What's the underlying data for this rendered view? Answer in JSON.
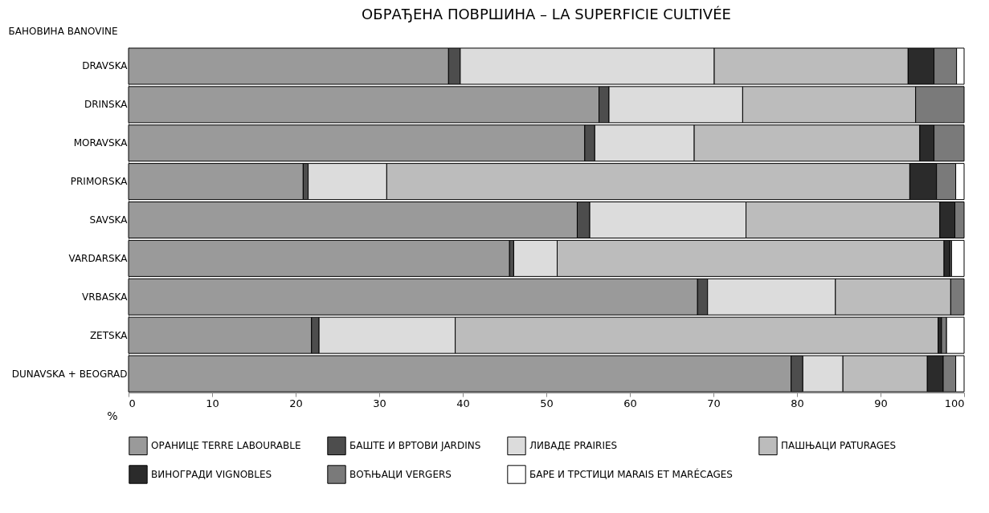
{
  "chart_data": {
    "type": "bar",
    "orientation": "horizontal",
    "stacked": true,
    "title": "ОБРАЂЕНА ПОВРШИНА – LA SUPERFICIE CULTIVÉE",
    "ylabel": "БАНОВИНА BANOVINE",
    "xlabel": "%",
    "categories": [
      "DRAVSKA",
      "DRINSKA",
      "MORAVSKA",
      "PRIMORSKA",
      "SAVSKA",
      "VARDARSKA",
      "VRBASKA",
      "ZETSKA",
      "DUNAVSKA + BEOGRAD"
    ],
    "series": [
      {
        "name": "ОРАНИЦЕ TERRE LABOURABLE",
        "color": "#9a9a9a",
        "values": [
          38.3,
          56.3,
          54.6,
          20.9,
          53.7,
          45.6,
          68.1,
          21.9,
          79.3
        ]
      },
      {
        "name": "БАШТЕ И ВРТОВИ JARDINS",
        "color": "#4d4d4d",
        "values": [
          1.4,
          1.2,
          1.2,
          0.6,
          1.5,
          0.5,
          1.2,
          0.9,
          1.4
        ]
      },
      {
        "name": "ЛИВАДЕ PRAIRIES",
        "color": "#dcdcdc",
        "values": [
          30.4,
          16.0,
          11.9,
          9.4,
          18.7,
          5.2,
          15.3,
          16.3,
          4.8
        ]
      },
      {
        "name": "ПАШЊАЦИ PATURAGES",
        "color": "#bcbcbc",
        "values": [
          23.2,
          20.7,
          27.0,
          62.6,
          23.2,
          46.3,
          13.8,
          57.8,
          10.1
        ]
      },
      {
        "name": "ВИНОГРАДИ VIGNOBLES",
        "color": "#2b2b2b",
        "values": [
          3.1,
          null,
          1.7,
          3.2,
          1.8,
          0.7,
          null,
          0.4,
          1.9
        ]
      },
      {
        "name": "ВОЋЊАЦИ VERGERS",
        "color": "#7a7a7a",
        "values": [
          2.7,
          5.8,
          3.6,
          2.3,
          1.1,
          0.2,
          1.6,
          0.6,
          1.5
        ]
      },
      {
        "name": "БАРЕ И ТРСТИЦИ MARAIS ET MARÉCAGES",
        "color": "#ffffff",
        "values": [
          0.9,
          null,
          null,
          1.0,
          null,
          1.5,
          null,
          2.1,
          1.0
        ]
      }
    ],
    "xlim": [
      0,
      100
    ],
    "xticks": [
      0,
      10,
      20,
      30,
      40,
      50,
      60,
      70,
      80,
      90,
      100
    ],
    "legend": "bottom"
  }
}
